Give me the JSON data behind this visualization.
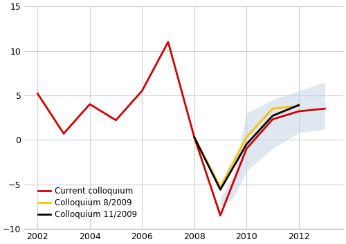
{
  "years_red": [
    2002,
    2003,
    2004,
    2005,
    2006,
    2007,
    2008,
    2009,
    2010,
    2011,
    2012,
    2013
  ],
  "values_red": [
    5.2,
    0.7,
    4.0,
    2.2,
    5.5,
    11.0,
    0.3,
    -8.5,
    -1.0,
    2.3,
    3.2,
    3.5
  ],
  "years_yellow": [
    2008,
    2009,
    2010,
    2011,
    2012
  ],
  "values_yellow": [
    0.3,
    -5.3,
    0.3,
    3.5,
    3.8
  ],
  "years_black": [
    2008,
    2009,
    2010,
    2011,
    2012
  ],
  "values_black": [
    0.3,
    -5.6,
    -0.5,
    2.7,
    3.9
  ],
  "shade_years": [
    2009.0,
    2009.5,
    2010.0,
    2011.0,
    2012.0,
    2013.0,
    2013.0,
    2012.0,
    2011.0,
    2010.0,
    2009.5,
    2009.0
  ],
  "shade_upper": [
    -6.5,
    -4.0,
    3.0,
    4.5,
    5.5,
    6.5
  ],
  "shade_lower": [
    -7.5,
    -6.5,
    -3.5,
    -1.0,
    0.8,
    1.2
  ],
  "color_red": "#d40000",
  "color_yellow": "#ffc000",
  "color_black": "#000000",
  "shade_color": "#c5d5e5",
  "shade_alpha": 0.55,
  "xlim": [
    2001.5,
    2013.7
  ],
  "ylim": [
    -10,
    15
  ],
  "xticks": [
    2002,
    2004,
    2006,
    2008,
    2010,
    2012
  ],
  "yticks": [
    -10,
    -5,
    0,
    5,
    10,
    15
  ],
  "legend_labels": [
    "Current colloquium",
    "Colloquium 8/2009",
    "Colloquium 11/2009"
  ],
  "linewidth": 2.0,
  "figsize": [
    5.0,
    3.53
  ],
  "dpi": 100
}
